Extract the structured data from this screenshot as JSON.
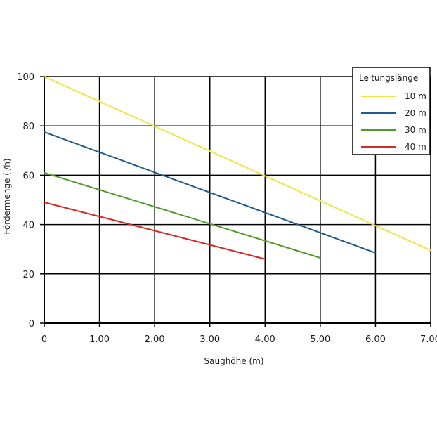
{
  "chart_data": {
    "type": "line",
    "xlabel": "Saughöhe (m)",
    "ylabel": "Fördermenge (l/h)",
    "xlim": [
      0,
      7
    ],
    "ylim": [
      0,
      100
    ],
    "x_ticks": [
      "0",
      "1.00",
      "2.00",
      "3.00",
      "4.00",
      "5.00",
      "6.00",
      "7.00"
    ],
    "y_ticks": [
      "0",
      "20",
      "40",
      "60",
      "80",
      "100"
    ],
    "grid": true,
    "legend": {
      "title": "Leitungslänge",
      "position": "top-right"
    },
    "series": [
      {
        "name": "10 m",
        "color": "#f0e442",
        "x": [
          0,
          7
        ],
        "y": [
          100,
          29.5
        ]
      },
      {
        "name": "20 m",
        "color": "#1f5b8e",
        "x": [
          0,
          6
        ],
        "y": [
          77.5,
          28.5
        ]
      },
      {
        "name": "30 m",
        "color": "#4f9a2a",
        "x": [
          0,
          5
        ],
        "y": [
          61,
          26.5
        ]
      },
      {
        "name": "40 m",
        "color": "#d42a22",
        "x": [
          0,
          4
        ],
        "y": [
          49,
          26
        ]
      }
    ]
  }
}
